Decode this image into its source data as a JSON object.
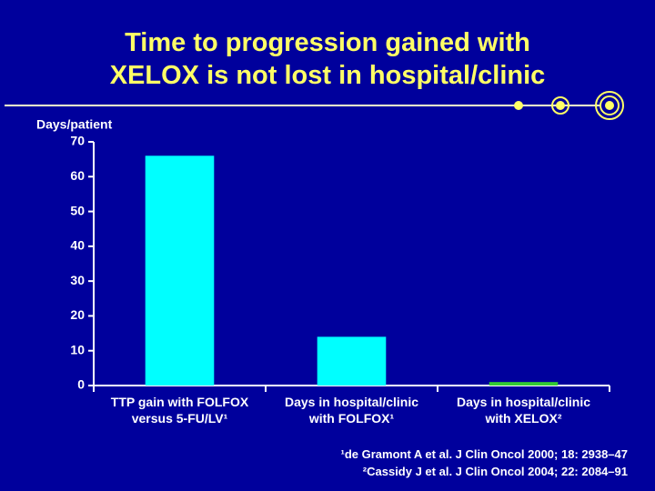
{
  "chart_data": {
    "type": "bar",
    "title": [
      "Time to progression gained with",
      "XELOX is not lost in hospital/clinic"
    ],
    "y_label": "Days/patient",
    "categories": [
      "TTP gain with FOLFOX\nversus 5-FU/LV¹",
      "Days in hospital/clinic\nwith FOLFOX¹",
      "Days in hospital/clinic\nwith XELOX²"
    ],
    "values": [
      66,
      14,
      1
    ],
    "colors": [
      "#00ffff",
      "#00ffff",
      "#33cc33"
    ],
    "ylim": [
      0,
      70
    ],
    "yticks": [
      0,
      10,
      20,
      30,
      40,
      50,
      60,
      70
    ],
    "grid": false,
    "footnotes": [
      "¹de Gramont A et al. J Clin Oncol 2000; 18: 2938–47",
      "²Cassidy J et al. J Clin Oncol 2004; 22: 2084–91"
    ]
  }
}
